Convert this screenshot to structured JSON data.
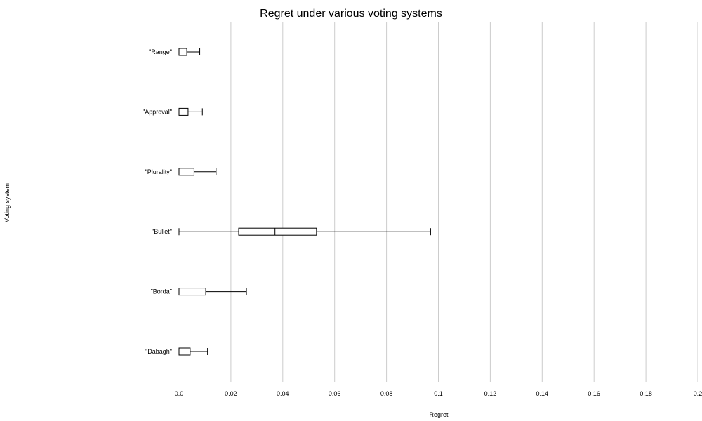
{
  "chart_data": {
    "type": "boxplot",
    "orientation": "horizontal",
    "title": "Regret under various voting systems",
    "xlabel": "Regret",
    "ylabel": "Voting system",
    "xlim": [
      0,
      0.2
    ],
    "xticks": [
      0,
      0.02,
      0.04,
      0.06,
      0.08,
      0.1,
      0.12,
      0.14,
      0.16,
      0.18,
      0.2
    ],
    "xtick_labels": [
      "0.0",
      "0.02",
      "0.04",
      "0.06",
      "0.08",
      "0.1",
      "0.12",
      "0.14",
      "0.16",
      "0.18",
      "0.2"
    ],
    "grid": "vertical",
    "categories": [
      "\"Range\"",
      "\"Approval\"",
      "\"Plurality\"",
      "\"Bullet\"",
      "\"Borda\"",
      "\"Dabagh\""
    ],
    "boxes": [
      {
        "min": 0,
        "q1": 0,
        "median": 0,
        "q3": 0.003,
        "max": 0.008
      },
      {
        "min": 0,
        "q1": 0,
        "median": 0,
        "q3": 0.0035,
        "max": 0.009
      },
      {
        "min": 0,
        "q1": 0,
        "median": 0,
        "q3": 0.0058,
        "max": 0.0143
      },
      {
        "min": 0,
        "q1": 0.023,
        "median": 0.037,
        "q3": 0.053,
        "max": 0.097
      },
      {
        "min": 0,
        "q1": 0,
        "median": 0,
        "q3": 0.0103,
        "max": 0.026
      },
      {
        "min": 0,
        "q1": 0,
        "median": 0,
        "q3": 0.0043,
        "max": 0.011
      }
    ]
  }
}
